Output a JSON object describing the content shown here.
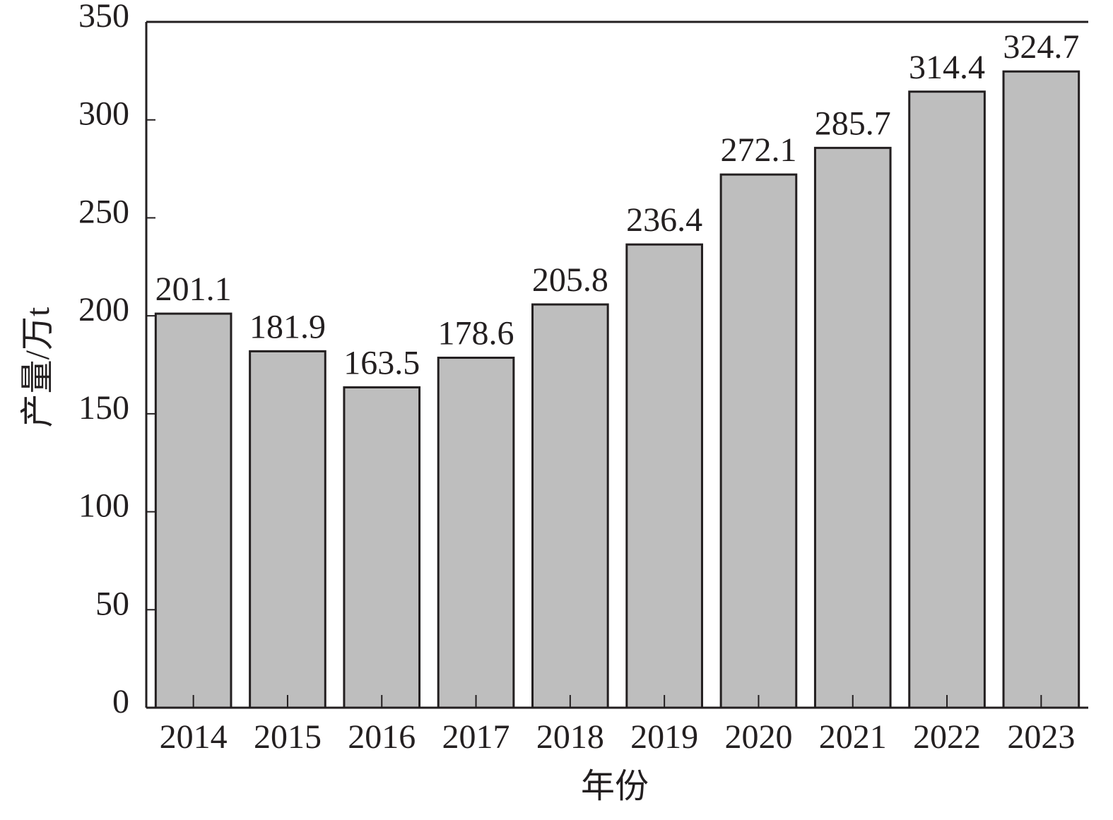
{
  "chart_data": {
    "type": "bar",
    "x_label": "年份",
    "y_label": "产量/万t",
    "categories": [
      "2014",
      "2015",
      "2016",
      "2017",
      "2018",
      "2019",
      "2020",
      "2021",
      "2022",
      "2023"
    ],
    "values": [
      201.1,
      181.9,
      163.5,
      178.6,
      205.8,
      236.4,
      272.1,
      285.7,
      314.4,
      324.7
    ],
    "color": "#bebebe",
    "ylim": [
      0,
      350
    ],
    "yticks": [
      0,
      50,
      100,
      150,
      200,
      250,
      300,
      350
    ]
  }
}
